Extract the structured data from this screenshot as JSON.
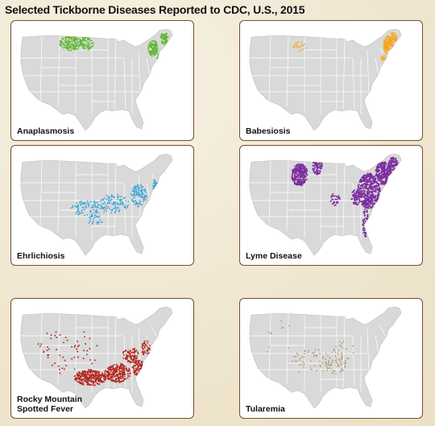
{
  "title": "Selected Tickborne Diseases Reported to CDC, U.S., 2015",
  "panels": [
    {
      "label": "Anaplasmosis",
      "color": "#5cb82e",
      "density": "northeast and upper-midwest clusters"
    },
    {
      "label": "Babesiosis",
      "color": "#f5a623",
      "density": "northeast cluster, sparse upper-midwest"
    },
    {
      "label": "Ehrlichiosis",
      "color": "#3aa6d8",
      "density": "south-central and southeastern states"
    },
    {
      "label": "Lyme Disease",
      "color": "#7b2d9e",
      "density": "dense northeast and upper-midwest"
    },
    {
      "label": "Rocky Mountain\nSpotted Fever",
      "color": "#b3261e",
      "density": "south-central and southeastern states"
    },
    {
      "label": "Tularemia",
      "color": "#b08a5a",
      "density": "sparse, central states"
    }
  ],
  "colors": {
    "land": "#d9d9d9",
    "state_border": "#ffffff",
    "panel_border": "#7a4a33",
    "background": "#f4eddc"
  }
}
